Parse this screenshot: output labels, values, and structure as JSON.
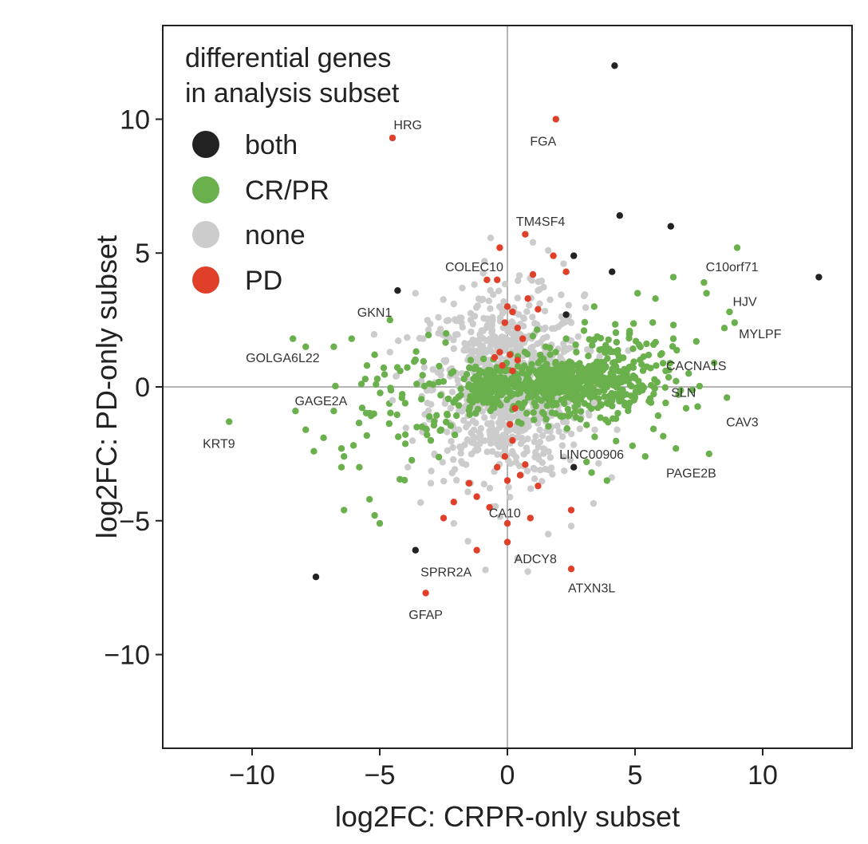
{
  "chart_data": {
    "type": "scatter",
    "xlabel": "log2FC: CRPR-only subset",
    "ylabel": "log2FC: PD-only subset",
    "xlim": [
      -13.5,
      13.5
    ],
    "ylim": [
      -13.5,
      13.5
    ],
    "x_ticks": [
      -10,
      -5,
      0,
      5,
      10
    ],
    "y_ticks": [
      10,
      5,
      0,
      -5,
      -10
    ],
    "x_tick_labels": [
      "−10",
      "−5",
      "0",
      "5",
      "10"
    ],
    "y_tick_labels": [
      "10",
      "5",
      "0",
      "−5",
      "−10"
    ],
    "reference_lines": {
      "x": 0,
      "y": 0
    },
    "legend": {
      "title_line1": "differential genes",
      "title_line2": "in analysis subset",
      "position": "top-left",
      "entries": [
        {
          "label": "both",
          "color": "#222222"
        },
        {
          "label": "CR/PR",
          "color": "#6ab04c"
        },
        {
          "label": "none",
          "color": "#cccccc"
        },
        {
          "label": "PD",
          "color": "#e0402a"
        }
      ]
    },
    "colors": {
      "both": "#222222",
      "CR/PR": "#6ab04c",
      "none": "#cccccc",
      "PD": "#e0402a"
    },
    "series": [
      {
        "name": "both",
        "points": [
          [
            4.2,
            12.0
          ],
          [
            4.4,
            6.4
          ],
          [
            6.4,
            6.0
          ],
          [
            2.6,
            4.9
          ],
          [
            4.1,
            4.3
          ],
          [
            12.2,
            4.1
          ],
          [
            2.3,
            2.7
          ],
          [
            -4.3,
            3.6
          ],
          [
            2.6,
            -3.0
          ],
          [
            -3.6,
            -6.1
          ],
          [
            -7.5,
            -7.1
          ]
        ]
      },
      {
        "name": "PD",
        "points": [
          [
            -4.5,
            9.3
          ],
          [
            1.9,
            10.0
          ],
          [
            0.7,
            5.7
          ],
          [
            -0.3,
            5.2
          ],
          [
            1.8,
            4.9
          ],
          [
            2.3,
            4.3
          ],
          [
            -0.4,
            4.0
          ],
          [
            -0.8,
            4.0
          ],
          [
            1.0,
            4.2
          ],
          [
            0.8,
            3.3
          ],
          [
            0.0,
            3.0
          ],
          [
            0.2,
            2.8
          ],
          [
            1.2,
            2.9
          ],
          [
            -0.1,
            2.4
          ],
          [
            0.4,
            2.2
          ],
          [
            0.6,
            1.8
          ],
          [
            -0.3,
            1.3
          ],
          [
            0.1,
            1.2
          ],
          [
            0.4,
            1.0
          ],
          [
            -0.5,
            1.1
          ],
          [
            -0.2,
            0.8
          ],
          [
            0.2,
            0.6
          ],
          [
            0.3,
            -0.8
          ],
          [
            0.1,
            -1.4
          ],
          [
            0.2,
            -2.0
          ],
          [
            -0.1,
            -2.6
          ],
          [
            0.7,
            -2.9
          ],
          [
            -0.4,
            -3.0
          ],
          [
            0.5,
            -3.3
          ],
          [
            0.0,
            -3.5
          ],
          [
            1.2,
            -3.7
          ],
          [
            -1.5,
            -3.6
          ],
          [
            -1.2,
            -4.1
          ],
          [
            -2.1,
            -4.3
          ],
          [
            2.5,
            -4.6
          ],
          [
            -0.7,
            -4.5
          ],
          [
            0.0,
            -5.1
          ],
          [
            -2.5,
            -4.9
          ],
          [
            0.9,
            -4.9
          ],
          [
            0.0,
            -5.8
          ],
          [
            -1.2,
            -6.1
          ],
          [
            2.5,
            -6.8
          ],
          [
            -3.2,
            -7.7
          ]
        ]
      },
      {
        "name": "CR/PR",
        "points": [
          [
            9.0,
            5.2
          ],
          [
            7.7,
            3.9
          ],
          [
            6.5,
            4.1
          ],
          [
            7.8,
            3.5
          ],
          [
            8.7,
            2.8
          ],
          [
            8.9,
            2.4
          ],
          [
            8.5,
            2.2
          ],
          [
            7.4,
            1.7
          ],
          [
            6.5,
            1.8
          ],
          [
            6.0,
            1.2
          ],
          [
            8.1,
            0.9
          ],
          [
            7.1,
            0.5
          ],
          [
            6.2,
            0.6
          ],
          [
            8.6,
            -0.4
          ],
          [
            7.0,
            -0.8
          ],
          [
            6.2,
            -0.6
          ],
          [
            6.6,
            -2.3
          ],
          [
            5.4,
            -2.6
          ],
          [
            7.9,
            -2.5
          ],
          [
            4.9,
            -2.2
          ],
          [
            3.3,
            -3.2
          ],
          [
            3.9,
            -3.5
          ],
          [
            3.1,
            -2.8
          ],
          [
            5.8,
            3.3
          ],
          [
            5.1,
            3.5
          ],
          [
            3.4,
            3.0
          ],
          [
            3.0,
            2.1
          ],
          [
            2.7,
            1.3
          ],
          [
            2.3,
            1.8
          ],
          [
            1.5,
            1.5
          ],
          [
            -4.6,
            2.5
          ],
          [
            -8.4,
            1.8
          ],
          [
            -6.8,
            1.5
          ],
          [
            -6.1,
            1.8
          ],
          [
            -5.2,
            1.2
          ],
          [
            -4.2,
            0.6
          ],
          [
            -7.9,
            1.5
          ],
          [
            -5.5,
            0.8
          ],
          [
            -6.8,
            -0.9
          ],
          [
            -8.3,
            -0.9
          ],
          [
            -10.9,
            -1.3
          ],
          [
            -7.9,
            -1.6
          ],
          [
            -7.2,
            -1.9
          ],
          [
            -6.4,
            -2.6
          ],
          [
            -5.8,
            -3.0
          ],
          [
            -6.5,
            -2.3
          ],
          [
            -5.4,
            -4.2
          ],
          [
            -6.4,
            -4.6
          ],
          [
            -5.2,
            -4.8
          ],
          [
            -5.0,
            -5.1
          ],
          [
            -3.0,
            -2.0
          ],
          [
            -2.4,
            2.0
          ],
          [
            -3.6,
            1.0
          ],
          [
            -2.6,
            -1.6
          ],
          [
            -6.5,
            -3.0
          ]
        ]
      },
      {
        "name": "none",
        "points": [
          [
            1.0,
            5.4
          ],
          [
            1.6,
            5.1
          ],
          [
            2.2,
            4.6
          ],
          [
            -0.9,
            4.7
          ],
          [
            -3.6,
            3.5
          ],
          [
            -2.1,
            3.1
          ],
          [
            3.0,
            3.4
          ],
          [
            -1.8,
            2.4
          ],
          [
            -0.6,
            2.3
          ],
          [
            2.5,
            2.4
          ],
          [
            -4.6,
            1.3
          ],
          [
            -3.3,
            1.8
          ],
          [
            0.8,
            -6.9
          ],
          [
            0.4,
            -6.4
          ],
          [
            -2.1,
            -5.1
          ],
          [
            1.6,
            -5.5
          ],
          [
            -3.0,
            -3.6
          ],
          [
            2.5,
            -5.2
          ],
          [
            -3.9,
            -3.0
          ],
          [
            4.3,
            -1.6
          ],
          [
            3.4,
            -0.6
          ],
          [
            -4.5,
            -0.5
          ],
          [
            -2.7,
            2.6
          ],
          [
            1.2,
            3.6
          ]
        ]
      }
    ],
    "dense_clouds": [
      {
        "series": "none",
        "center": [
          0.0,
          0.0
        ],
        "spread": [
          1.5,
          1.7
        ],
        "count": 900
      },
      {
        "series": "CR/PR",
        "center": [
          2.2,
          0.1
        ],
        "spread": [
          1.3,
          0.5
        ],
        "count": 420
      },
      {
        "series": "CR/PR",
        "center": [
          -0.7,
          0.0
        ],
        "spread": [
          0.5,
          0.4
        ],
        "count": 140
      },
      {
        "series": "CR/PR",
        "center": [
          4.1,
          0.3
        ],
        "spread": [
          1.2,
          1.0
        ],
        "count": 170
      },
      {
        "series": "CR/PR",
        "center": [
          -3.6,
          -0.6
        ],
        "spread": [
          1.2,
          1.2
        ],
        "count": 75
      }
    ],
    "annotations": [
      {
        "text": "HRG",
        "x": -3.9,
        "y": 9.8
      },
      {
        "text": "FGA",
        "x": 1.4,
        "y": 9.2
      },
      {
        "text": "TM4SF4",
        "x": 1.3,
        "y": 6.2
      },
      {
        "text": "COLEC10",
        "x": -1.3,
        "y": 4.5
      },
      {
        "text": "C10orf71",
        "x": 8.8,
        "y": 4.5
      },
      {
        "text": "HJV",
        "x": 9.3,
        "y": 3.2
      },
      {
        "text": "MYLPF",
        "x": 9.9,
        "y": 2.0
      },
      {
        "text": "GKN1",
        "x": -5.2,
        "y": 2.8
      },
      {
        "text": "GOLGA6L22",
        "x": -8.8,
        "y": 1.1
      },
      {
        "text": "CACNA1S",
        "x": 7.4,
        "y": 0.8
      },
      {
        "text": "SLN",
        "x": 6.9,
        "y": -0.2
      },
      {
        "text": "GAGE2A",
        "x": -7.3,
        "y": -0.5
      },
      {
        "text": "CAV3",
        "x": 9.2,
        "y": -1.3
      },
      {
        "text": "KRT9",
        "x": -11.3,
        "y": -2.1
      },
      {
        "text": "LINC00906",
        "x": 3.3,
        "y": -2.5
      },
      {
        "text": "PAGE2B",
        "x": 7.2,
        "y": -3.2
      },
      {
        "text": "CA10",
        "x": -0.1,
        "y": -4.7
      },
      {
        "text": "ADCY8",
        "x": 1.1,
        "y": -6.4
      },
      {
        "text": "SPRR2A",
        "x": -2.4,
        "y": -6.9
      },
      {
        "text": "ATXN3L",
        "x": 3.3,
        "y": -7.5
      },
      {
        "text": "GFAP",
        "x": -3.2,
        "y": -8.5
      }
    ]
  }
}
